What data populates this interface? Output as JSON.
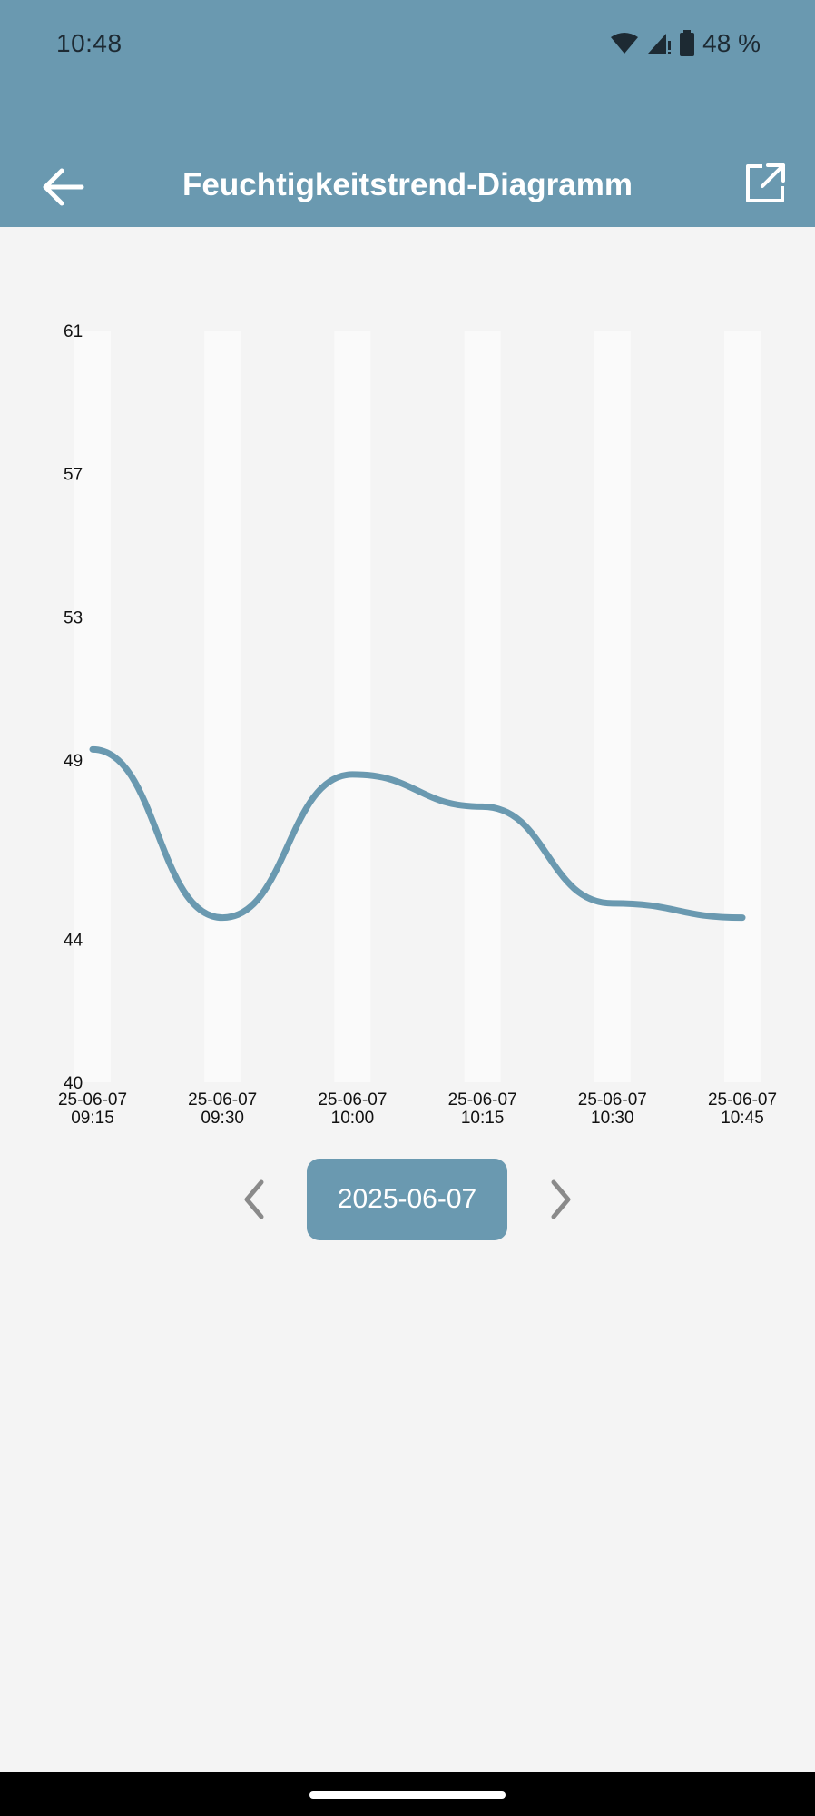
{
  "status_bar": {
    "time": "10:48",
    "battery": "48 %"
  },
  "app_bar": {
    "title": "Feuchtigkeitstrend-Diagramm",
    "color": "#6a99b0"
  },
  "date_nav": {
    "current_date": "2025-06-07"
  },
  "chart_data": {
    "type": "line",
    "title": "",
    "xlabel": "",
    "ylabel": "",
    "ylim": [
      40,
      61
    ],
    "y_ticks": [
      "61",
      "57",
      "53",
      "49",
      "44",
      "40"
    ],
    "categories": [
      [
        "25-06-07",
        "09:15"
      ],
      [
        "25-06-07",
        "09:30"
      ],
      [
        "25-06-07",
        "10:00"
      ],
      [
        "25-06-07",
        "10:15"
      ],
      [
        "25-06-07",
        "10:30"
      ],
      [
        "25-06-07",
        "10:45"
      ]
    ],
    "series": [
      {
        "values": [
          49.3,
          44.6,
          48.6,
          47.7,
          45.0,
          44.6
        ],
        "color": "#6a99b0"
      }
    ],
    "grid": "alternating vertical column bands",
    "legend": "none"
  }
}
